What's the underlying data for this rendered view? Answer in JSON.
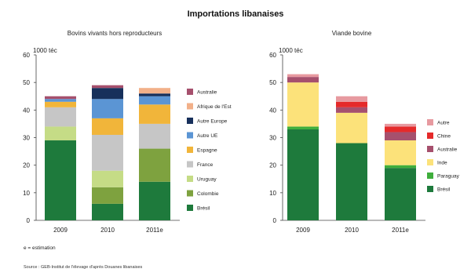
{
  "figure": {
    "title": "Importations libanaises",
    "note": "e = estimation",
    "source": "Source : GEB-Institut de l'élevage d'après Douanes libanaises"
  },
  "chart_data": [
    {
      "type": "bar",
      "stacked": true,
      "title": "Bovins vivants hors reproducteurs",
      "unit_label": "1000 téc",
      "categories": [
        "2009",
        "2010",
        "2011e"
      ],
      "ylim": [
        0,
        60
      ],
      "yticks": [
        0,
        10,
        20,
        30,
        40,
        50,
        60
      ],
      "legend_position": "right",
      "series": [
        {
          "name": "Brésil",
          "color": "#1e7a3c",
          "values": [
            29,
            6,
            14
          ]
        },
        {
          "name": "Colombie",
          "color": "#7ea23f",
          "values": [
            0,
            6,
            12
          ]
        },
        {
          "name": "Uruguay",
          "color": "#c5dc86",
          "values": [
            5,
            6,
            0
          ]
        },
        {
          "name": "France",
          "color": "#c6c6c6",
          "values": [
            7,
            13,
            9
          ]
        },
        {
          "name": "Espagne",
          "color": "#f1b53a",
          "values": [
            2,
            6,
            7
          ]
        },
        {
          "name": "Autre UE",
          "color": "#5b95d4",
          "values": [
            1,
            7,
            3
          ]
        },
        {
          "name": "Autre Europe",
          "color": "#17305b",
          "values": [
            0,
            4,
            1
          ]
        },
        {
          "name": "Afrique de l'Est",
          "color": "#f2b089",
          "values": [
            0,
            0,
            2
          ]
        },
        {
          "name": "Australie",
          "color": "#a6506d",
          "values": [
            1,
            1,
            0
          ]
        }
      ]
    },
    {
      "type": "bar",
      "stacked": true,
      "title": "Viande bovine",
      "unit_label": "1000 téc",
      "categories": [
        "2009",
        "2010",
        "2011e"
      ],
      "ylim": [
        0,
        60
      ],
      "yticks": [
        0,
        10,
        20,
        30,
        40,
        50,
        60
      ],
      "legend_position": "right",
      "series": [
        {
          "name": "Brésil",
          "color": "#1e7a3c",
          "values": [
            33,
            28,
            19
          ]
        },
        {
          "name": "Paraguay",
          "color": "#3fae3c",
          "values": [
            1,
            0,
            1
          ]
        },
        {
          "name": "Inde",
          "color": "#fce27a",
          "values": [
            16,
            11,
            9
          ]
        },
        {
          "name": "Australie",
          "color": "#a6506d",
          "values": [
            2,
            2,
            3
          ]
        },
        {
          "name": "Chine",
          "color": "#e52a2a",
          "values": [
            0,
            2,
            2
          ]
        },
        {
          "name": "Autre",
          "color": "#e79aa0",
          "values": [
            1,
            2,
            1
          ]
        }
      ]
    }
  ]
}
